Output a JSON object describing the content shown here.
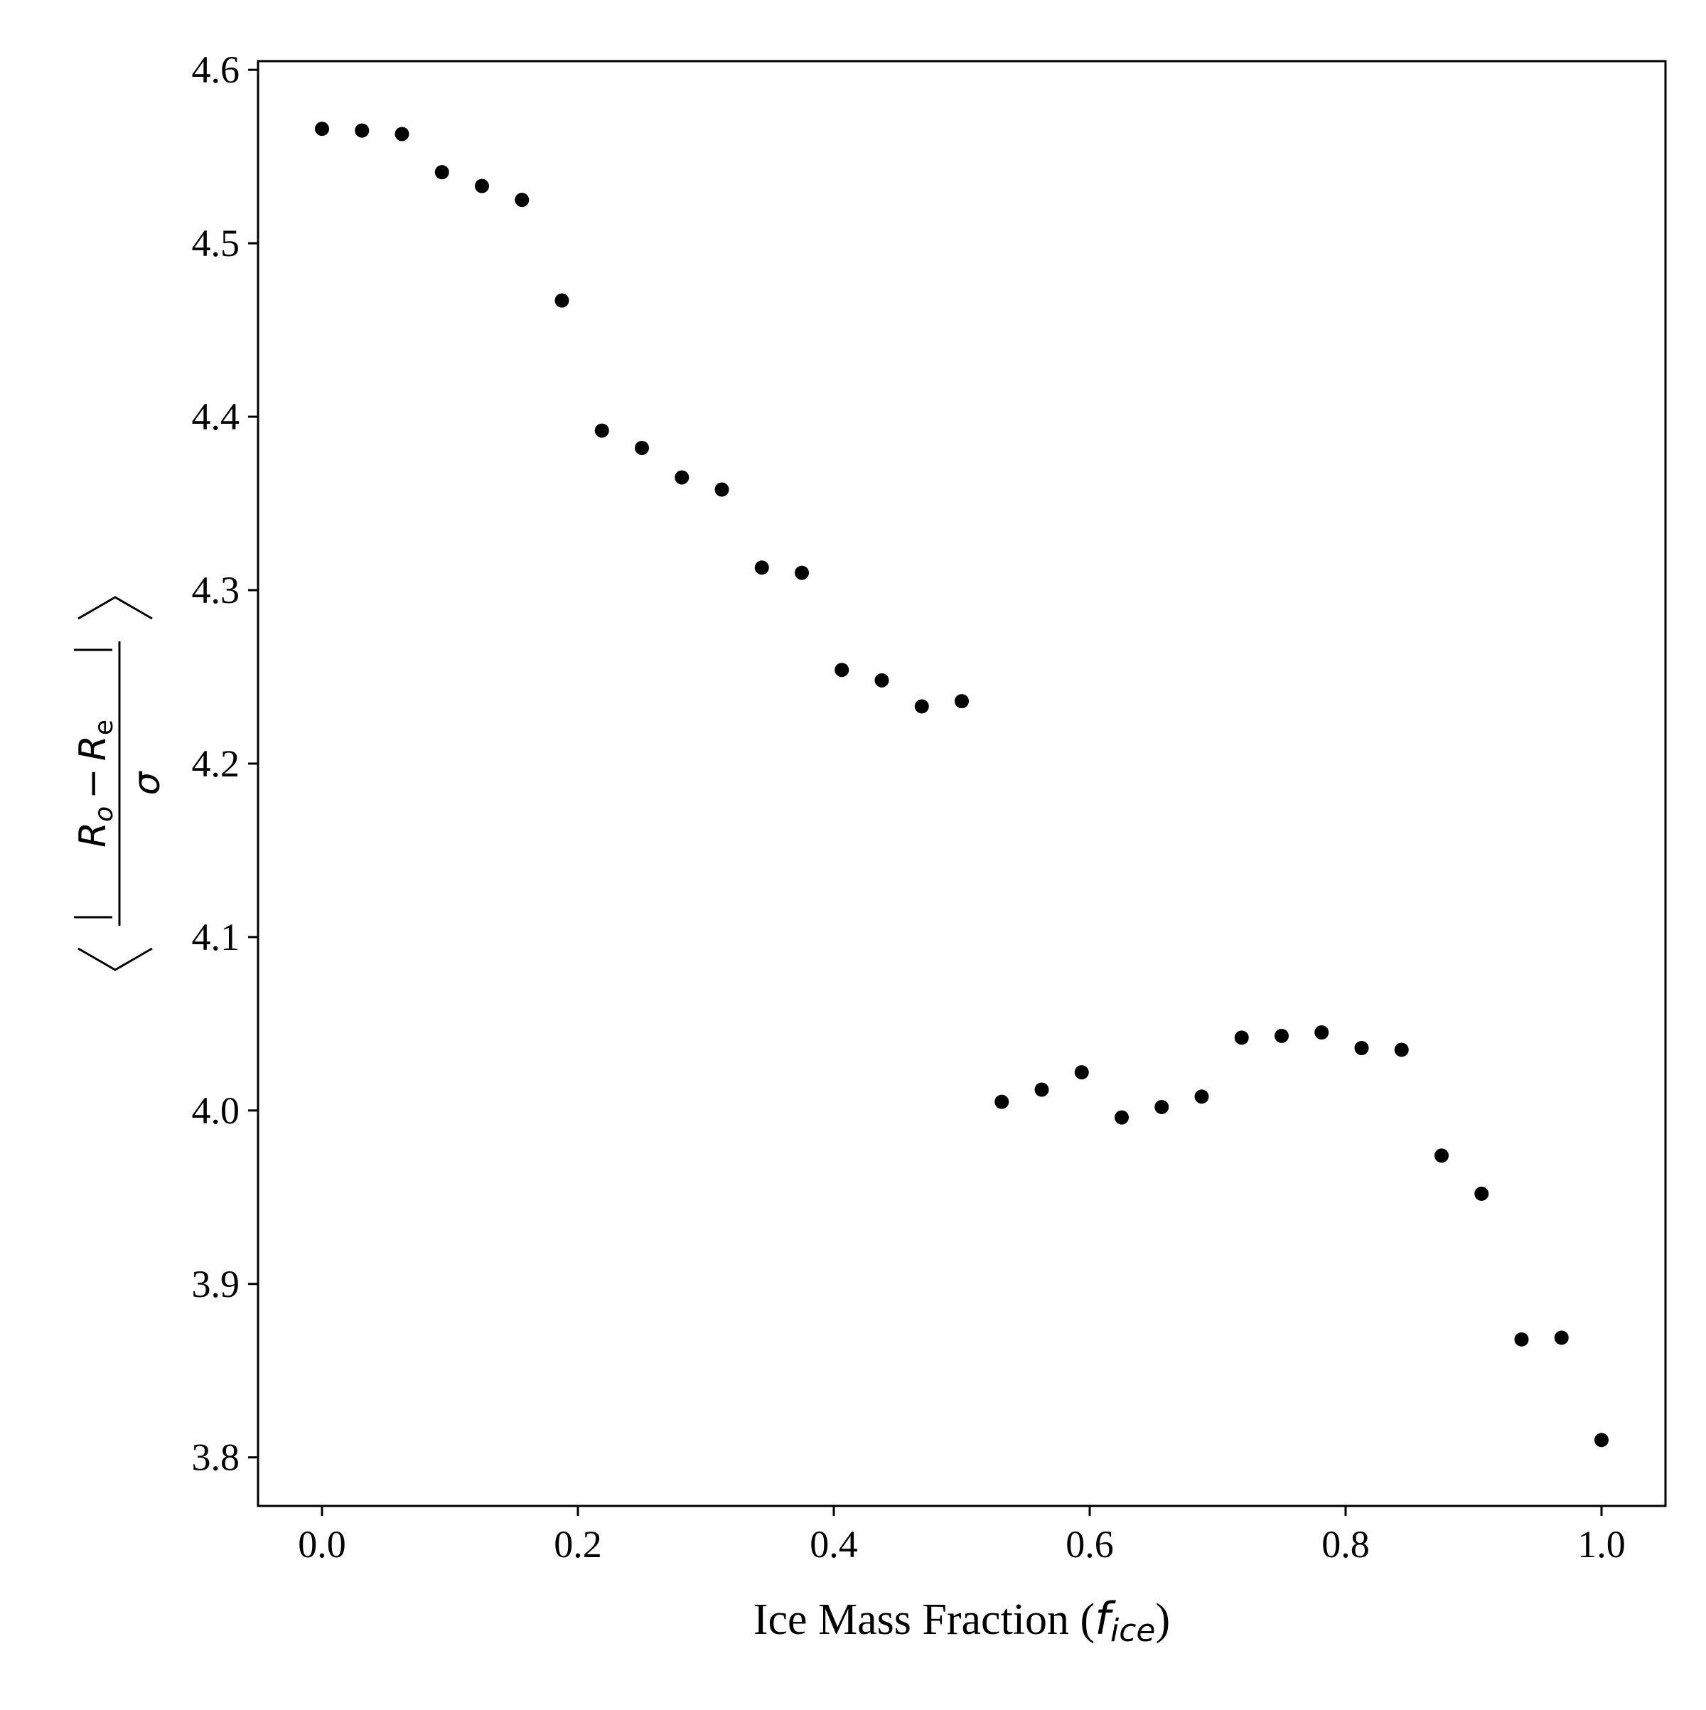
{
  "chart_data": {
    "type": "scatter",
    "title": "",
    "xlabel": {
      "text": "Ice Mass Fraction (",
      "symbol": "f",
      "subscript": "ice",
      "close": ")"
    },
    "ylabel": {
      "symbol_r": "R",
      "sub_o": "o",
      "minus": "−",
      "sub_e": "e",
      "sigma": "σ"
    },
    "xlim": [
      -0.05,
      1.05
    ],
    "ylim": [
      3.772,
      4.605
    ],
    "xticks": [
      0.0,
      0.2,
      0.4,
      0.6,
      0.8,
      1.0
    ],
    "xtick_labels": [
      "0.0",
      "0.2",
      "0.4",
      "0.6",
      "0.8",
      "1.0"
    ],
    "yticks": [
      3.8,
      3.9,
      4.0,
      4.1,
      4.2,
      4.3,
      4.4,
      4.5,
      4.6
    ],
    "ytick_labels": [
      "3.8",
      "3.9",
      "4.0",
      "4.1",
      "4.2",
      "4.3",
      "4.4",
      "4.5",
      "4.6"
    ],
    "grid": false,
    "marker_color": "#000000",
    "series": [
      {
        "x": [
          0.0,
          0.03125,
          0.0625,
          0.09375,
          0.125,
          0.15625,
          0.1875,
          0.21875,
          0.25,
          0.28125,
          0.3125,
          0.34375,
          0.375,
          0.40625,
          0.4375,
          0.46875,
          0.5,
          0.53125,
          0.5625,
          0.59375,
          0.625,
          0.65625,
          0.6875,
          0.71875,
          0.75,
          0.78125,
          0.8125,
          0.84375,
          0.875,
          0.90625,
          0.9375,
          0.96875,
          1.0
        ],
        "y": [
          4.566,
          4.565,
          4.563,
          4.541,
          4.533,
          4.525,
          4.467,
          4.392,
          4.382,
          4.365,
          4.358,
          4.313,
          4.31,
          4.254,
          4.248,
          4.233,
          4.236,
          4.005,
          4.012,
          4.022,
          3.996,
          4.002,
          4.008,
          4.042,
          4.043,
          4.045,
          4.036,
          4.035,
          3.974,
          3.952,
          3.868,
          3.869,
          3.81
        ]
      }
    ]
  }
}
